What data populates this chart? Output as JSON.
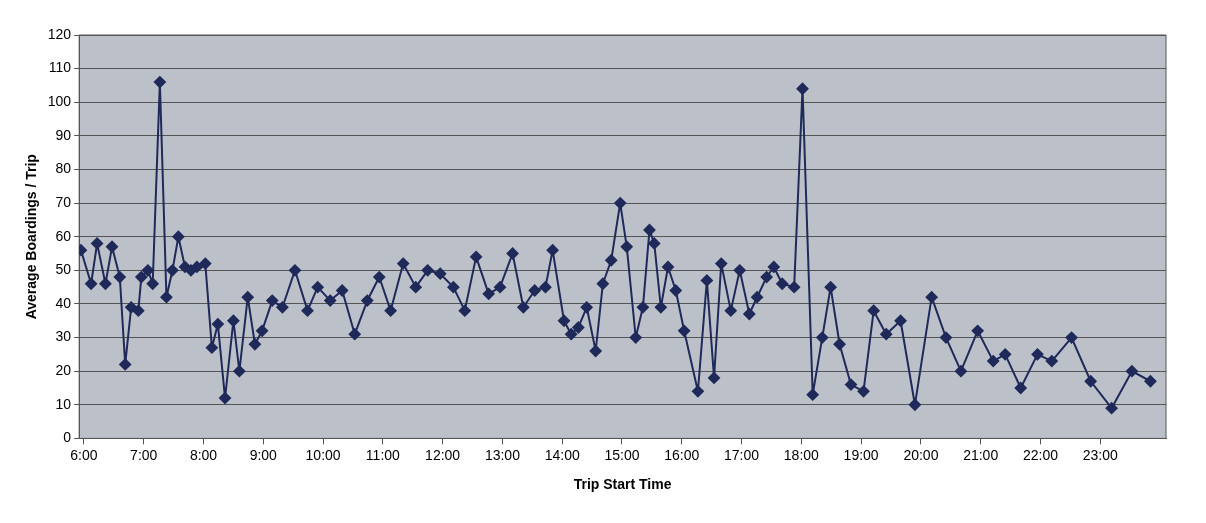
{
  "chart_data": {
    "type": "line",
    "xlabel": "Trip Start Time",
    "ylabel": "Average Boardings / Trip",
    "x": [
      5.95,
      6.12,
      6.22,
      6.36,
      6.47,
      6.6,
      6.69,
      6.79,
      6.91,
      6.96,
      7.07,
      7.15,
      7.27,
      7.38,
      7.48,
      7.58,
      7.69,
      7.79,
      7.89,
      8.03,
      8.14,
      8.24,
      8.36,
      8.5,
      8.6,
      8.74,
      8.86,
      8.98,
      9.15,
      9.32,
      9.53,
      9.74,
      9.91,
      10.12,
      10.32,
      10.53,
      10.74,
      10.94,
      11.13,
      11.34,
      11.55,
      11.75,
      11.96,
      12.18,
      12.37,
      12.56,
      12.77,
      12.96,
      13.17,
      13.35,
      13.54,
      13.72,
      13.84,
      14.03,
      14.15,
      14.27,
      14.41,
      14.56,
      14.68,
      14.82,
      14.97,
      15.08,
      15.23,
      15.35,
      15.46,
      15.54,
      15.65,
      15.77,
      15.9,
      16.04,
      16.27,
      16.42,
      16.54,
      16.66,
      16.82,
      16.97,
      17.13,
      17.26,
      17.42,
      17.54,
      17.68,
      17.88,
      18.02,
      18.19,
      18.35,
      18.49,
      18.64,
      18.83,
      19.04,
      19.21,
      19.42,
      19.66,
      19.9,
      20.18,
      20.42,
      20.67,
      20.95,
      21.21,
      21.41,
      21.67,
      21.95,
      22.19,
      22.52,
      22.84,
      23.19,
      23.53,
      23.84
    ],
    "series": [
      {
        "color": "#1f2a5a",
        "values": [
          56,
          46,
          58,
          46,
          57,
          48,
          22,
          39,
          38,
          48,
          50,
          46,
          106,
          42,
          50,
          60,
          51,
          50,
          51,
          52,
          27,
          34,
          12,
          35,
          20,
          42,
          28,
          32,
          41,
          39,
          50,
          38,
          45,
          41,
          44,
          31,
          41,
          48,
          38,
          52,
          45,
          50,
          49,
          45,
          38,
          54,
          43,
          45,
          55,
          39,
          44,
          45,
          56,
          35,
          31,
          33,
          39,
          26,
          46,
          53,
          70,
          57,
          30,
          39,
          62,
          58,
          39,
          51,
          44,
          32,
          14,
          47,
          18,
          52,
          38,
          50,
          37,
          42,
          48,
          51,
          46,
          45,
          104,
          13,
          30,
          45,
          28,
          16,
          14,
          38,
          31,
          35,
          10,
          42,
          30,
          20,
          32,
          23,
          25,
          15,
          25,
          23,
          30,
          17,
          9,
          20,
          17
        ]
      }
    ],
    "xlim": [
      5.92,
      24.1
    ],
    "xticks": [
      {
        "value": 6,
        "label": "6:00"
      },
      {
        "value": 7,
        "label": "7:00"
      },
      {
        "value": 8,
        "label": "8:00"
      },
      {
        "value": 9,
        "label": "9:00"
      },
      {
        "value": 10,
        "label": "10:00"
      },
      {
        "value": 11,
        "label": "11:00"
      },
      {
        "value": 12,
        "label": "12:00"
      },
      {
        "value": 13,
        "label": "13:00"
      },
      {
        "value": 14,
        "label": "14:00"
      },
      {
        "value": 15,
        "label": "15:00"
      },
      {
        "value": 16,
        "label": "16:00"
      },
      {
        "value": 17,
        "label": "17:00"
      },
      {
        "value": 18,
        "label": "18:00"
      },
      {
        "value": 19,
        "label": "19:00"
      },
      {
        "value": 20,
        "label": "20:00"
      },
      {
        "value": 21,
        "label": "21:00"
      },
      {
        "value": 22,
        "label": "22:00"
      },
      {
        "value": 23,
        "label": "23:00"
      }
    ],
    "ylim": [
      0,
      120
    ],
    "yticks": [
      0,
      10,
      20,
      30,
      40,
      50,
      60,
      70,
      80,
      90,
      100,
      110,
      120
    ],
    "grid": "y",
    "legend": false,
    "marker": "diamond",
    "line_style": "solid"
  }
}
